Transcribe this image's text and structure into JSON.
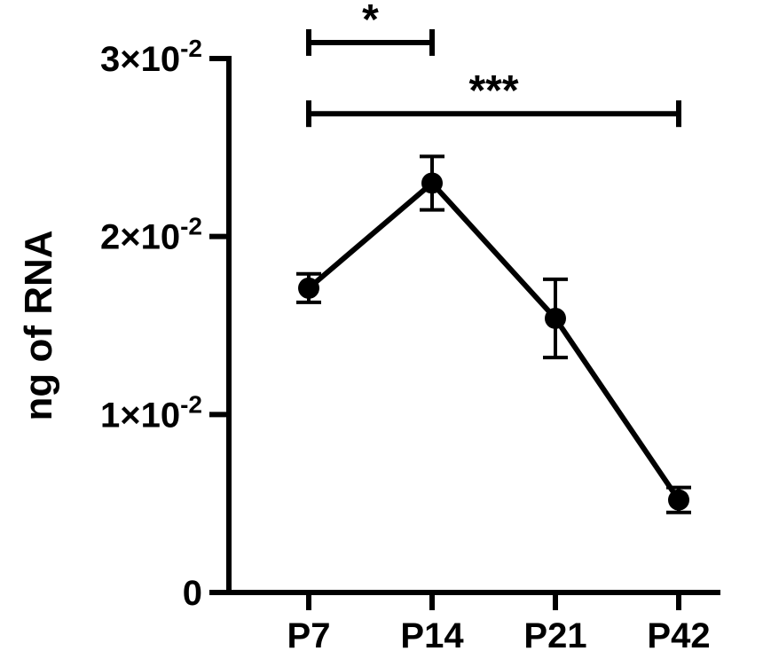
{
  "chart_data": {
    "type": "line",
    "title": "",
    "xlabel": "",
    "ylabel": "ng of RNA",
    "categories": [
      "P7",
      "P14",
      "P21",
      "P42"
    ],
    "series": [
      {
        "values": [
          0.0171,
          0.023,
          0.0154,
          0.0052
        ],
        "errors": [
          0.0008,
          0.0015,
          0.0022,
          0.0007
        ]
      }
    ],
    "ylim": [
      0,
      0.03
    ],
    "yticks": [
      {
        "value": 0,
        "label": "0"
      },
      {
        "value": 0.01,
        "label": "1×10",
        "exp": "-2"
      },
      {
        "value": 0.02,
        "label": "2×10",
        "exp": "-2"
      },
      {
        "value": 0.03,
        "label": "3×10",
        "exp": "-2"
      }
    ],
    "significance": [
      {
        "from": "P7",
        "to": "P14",
        "label": "*",
        "level": 0.0309
      },
      {
        "from": "P7",
        "to": "P42",
        "label": "***",
        "level": 0.0269
      }
    ],
    "grid": false,
    "legend": "none"
  }
}
